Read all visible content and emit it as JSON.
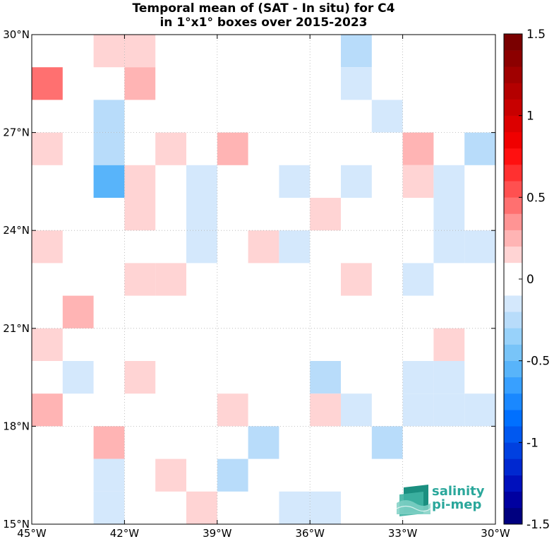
{
  "title": {
    "line1": "Temporal mean of (SAT - In situ) for C4",
    "line2": "in 1°x1° boxes over 2015-2023"
  },
  "logo": {
    "line1": "salinity",
    "line2": "pi-mep"
  },
  "colors": {
    "grid": "#b0b0b0",
    "frame": "#000000",
    "brand": "#2aa79b"
  },
  "chart_data": {
    "type": "heatmap",
    "x_range": [
      -45,
      -30
    ],
    "y_range": [
      15,
      30
    ],
    "x_ticks": [
      {
        "value": -45,
        "label": "45°W"
      },
      {
        "value": -42,
        "label": "42°W"
      },
      {
        "value": -39,
        "label": "39°W"
      },
      {
        "value": -36,
        "label": "36°W"
      },
      {
        "value": -33,
        "label": "33°W"
      },
      {
        "value": -30,
        "label": "30°W"
      }
    ],
    "y_ticks": [
      {
        "value": 15,
        "label": "15°N"
      },
      {
        "value": 18,
        "label": "18°N"
      },
      {
        "value": 21,
        "label": "21°N"
      },
      {
        "value": 24,
        "label": "24°N"
      },
      {
        "value": 27,
        "label": "27°N"
      },
      {
        "value": 30,
        "label": "30°N"
      }
    ],
    "grid": true,
    "colorbar": {
      "min": -1.5,
      "max": 1.5,
      "step": 0.1,
      "ticks": [
        {
          "value": 1.5,
          "label": "1.5"
        },
        {
          "value": 1,
          "label": "1"
        },
        {
          "value": 0.5,
          "label": "0.5"
        },
        {
          "value": 0,
          "label": "0"
        },
        {
          "value": -0.5,
          "label": "-0.5"
        },
        {
          "value": -1,
          "label": "-1"
        },
        {
          "value": -1.5,
          "label": "-1.5"
        }
      ],
      "colors": [
        "#00007f",
        "#0000a0",
        "#0010bc",
        "#0028d0",
        "#0040e0",
        "#0058f0",
        "#0070ff",
        "#1a88ff",
        "#38a0ff",
        "#58b4fa",
        "#78c4f8",
        "#98d2fa",
        "#b8dcfa",
        "#d4e8fc",
        "#ffffff",
        "#ffffff",
        "#ffd4d4",
        "#ffb4b4",
        "#ff9494",
        "#ff7070",
        "#ff5050",
        "#ff3030",
        "#ff1010",
        "#f00000",
        "#dc0000",
        "#c80000",
        "#b40000",
        "#a00000",
        "#8c0000",
        "#7a0000"
      ]
    },
    "cells": [
      {
        "lon": -43,
        "lat": 29,
        "value": 0.15
      },
      {
        "lon": -42,
        "lat": 29,
        "value": 0.15
      },
      {
        "lon": -35,
        "lat": 29,
        "value": -0.25
      },
      {
        "lon": -45,
        "lat": 28,
        "value": 0.45
      },
      {
        "lon": -42,
        "lat": 28,
        "value": 0.25
      },
      {
        "lon": -35,
        "lat": 28,
        "value": -0.15
      },
      {
        "lon": -43,
        "lat": 27,
        "value": -0.25
      },
      {
        "lon": -34,
        "lat": 27,
        "value": -0.15
      },
      {
        "lon": -45,
        "lat": 26,
        "value": 0.15
      },
      {
        "lon": -43,
        "lat": 26,
        "value": -0.25
      },
      {
        "lon": -41,
        "lat": 26,
        "value": 0.15
      },
      {
        "lon": -39,
        "lat": 26,
        "value": 0.25
      },
      {
        "lon": -33,
        "lat": 26,
        "value": 0.25
      },
      {
        "lon": -31,
        "lat": 26,
        "value": -0.25
      },
      {
        "lon": -43,
        "lat": 25,
        "value": -0.55
      },
      {
        "lon": -42,
        "lat": 25,
        "value": 0.15
      },
      {
        "lon": -40,
        "lat": 25,
        "value": -0.15
      },
      {
        "lon": -37,
        "lat": 25,
        "value": -0.15
      },
      {
        "lon": -35,
        "lat": 25,
        "value": -0.15
      },
      {
        "lon": -33,
        "lat": 25,
        "value": 0.15
      },
      {
        "lon": -32,
        "lat": 25,
        "value": -0.15
      },
      {
        "lon": -42,
        "lat": 24,
        "value": 0.15
      },
      {
        "lon": -40,
        "lat": 24,
        "value": -0.15
      },
      {
        "lon": -36,
        "lat": 24,
        "value": 0.15
      },
      {
        "lon": -32,
        "lat": 24,
        "value": -0.15
      },
      {
        "lon": -45,
        "lat": 23,
        "value": 0.15
      },
      {
        "lon": -40,
        "lat": 23,
        "value": -0.15
      },
      {
        "lon": -38,
        "lat": 23,
        "value": 0.15
      },
      {
        "lon": -37,
        "lat": 23,
        "value": -0.15
      },
      {
        "lon": -32,
        "lat": 23,
        "value": -0.15
      },
      {
        "lon": -31,
        "lat": 23,
        "value": -0.15
      },
      {
        "lon": -42,
        "lat": 22,
        "value": 0.15
      },
      {
        "lon": -41,
        "lat": 22,
        "value": 0.15
      },
      {
        "lon": -35,
        "lat": 22,
        "value": 0.15
      },
      {
        "lon": -33,
        "lat": 22,
        "value": -0.15
      },
      {
        "lon": -44,
        "lat": 21,
        "value": 0.25
      },
      {
        "lon": -45,
        "lat": 20,
        "value": 0.15
      },
      {
        "lon": -32,
        "lat": 20,
        "value": 0.15
      },
      {
        "lon": -44,
        "lat": 19,
        "value": -0.15
      },
      {
        "lon": -42,
        "lat": 19,
        "value": 0.15
      },
      {
        "lon": -36,
        "lat": 19,
        "value": -0.25
      },
      {
        "lon": -33,
        "lat": 19,
        "value": -0.15
      },
      {
        "lon": -32,
        "lat": 19,
        "value": -0.15
      },
      {
        "lon": -45,
        "lat": 18,
        "value": 0.25
      },
      {
        "lon": -39,
        "lat": 18,
        "value": 0.15
      },
      {
        "lon": -36,
        "lat": 18,
        "value": 0.15
      },
      {
        "lon": -35,
        "lat": 18,
        "value": -0.15
      },
      {
        "lon": -33,
        "lat": 18,
        "value": -0.15
      },
      {
        "lon": -32,
        "lat": 18,
        "value": -0.15
      },
      {
        "lon": -31,
        "lat": 18,
        "value": -0.15
      },
      {
        "lon": -43,
        "lat": 17,
        "value": 0.25
      },
      {
        "lon": -38,
        "lat": 17,
        "value": -0.25
      },
      {
        "lon": -34,
        "lat": 17,
        "value": -0.25
      },
      {
        "lon": -43,
        "lat": 16,
        "value": -0.15
      },
      {
        "lon": -41,
        "lat": 16,
        "value": 0.15
      },
      {
        "lon": -39,
        "lat": 16,
        "value": -0.25
      },
      {
        "lon": -43,
        "lat": 15,
        "value": -0.15
      },
      {
        "lon": -40,
        "lat": 15,
        "value": 0.15
      },
      {
        "lon": -37,
        "lat": 15,
        "value": -0.15
      },
      {
        "lon": -36,
        "lat": 15,
        "value": -0.15
      }
    ]
  }
}
